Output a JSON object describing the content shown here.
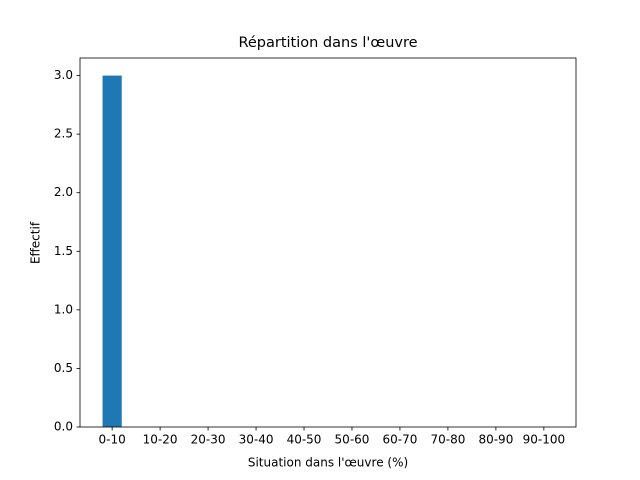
{
  "chart_data": {
    "type": "bar",
    "title": "Répartition dans l'œuvre",
    "x_label": "Situation dans l'œuvre (%)",
    "y_label": "Effectif",
    "categories": [
      "0-10",
      "10-20",
      "20-30",
      "30-40",
      "40-50",
      "50-60",
      "60-70",
      "70-80",
      "80-90",
      "90-100"
    ],
    "values": [
      3,
      0,
      0,
      0,
      0,
      0,
      0,
      0,
      0,
      0
    ],
    "color": "#1f77b4",
    "ylim": [
      0,
      3.15
    ],
    "yticks": [
      {
        "value": 0,
        "label": "0.0"
      },
      {
        "value": 0.5,
        "label": "0.5"
      },
      {
        "value": 1,
        "label": "1.0"
      },
      {
        "value": 1.5,
        "label": "1.5"
      },
      {
        "value": 2,
        "label": "2.0"
      },
      {
        "value": 2.5,
        "label": "2.5"
      },
      {
        "value": 3,
        "label": "3.0"
      }
    ]
  }
}
